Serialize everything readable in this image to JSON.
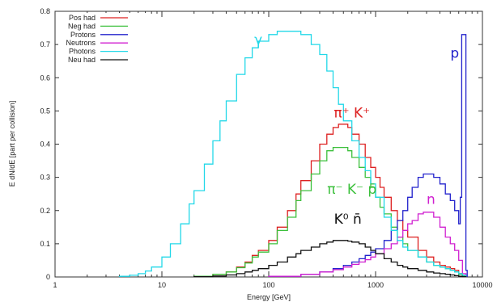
{
  "chart_data": {
    "type": "line",
    "xlabel": "Energy [GeV]",
    "ylabel": "E dN/dE [part per collision]",
    "xscale": "log",
    "xlim": [
      1,
      10000
    ],
    "ylim": [
      0,
      0.8
    ],
    "grid": false,
    "legend_position": "top-left",
    "x_ticks": [
      {
        "value": 1,
        "label": "1"
      },
      {
        "value": 10,
        "label": "10"
      },
      {
        "value": 100,
        "label": "100"
      },
      {
        "value": 1000,
        "label": "1000"
      },
      {
        "value": 10000,
        "label": "10000"
      }
    ],
    "y_ticks": [
      {
        "value": 0,
        "label": "0"
      },
      {
        "value": 0.1,
        "label": "0.1"
      },
      {
        "value": 0.2,
        "label": "0.2"
      },
      {
        "value": 0.3,
        "label": "0.3"
      },
      {
        "value": 0.4,
        "label": "0.4"
      },
      {
        "value": 0.5,
        "label": "0.5"
      },
      {
        "value": 0.6,
        "label": "0.6"
      },
      {
        "value": 0.7,
        "label": "0.7"
      },
      {
        "value": 0.8,
        "label": "0.8"
      }
    ],
    "series": [
      {
        "name": "Pos had",
        "color": "#dd2020",
        "x": [
          20,
          30,
          40,
          50,
          60,
          70,
          80,
          100,
          120,
          150,
          180,
          200,
          250,
          300,
          350,
          400,
          450,
          500,
          550,
          600,
          700,
          800,
          900,
          1000,
          1100,
          1200,
          1400,
          1600,
          1800,
          2000,
          2500,
          3000,
          3500,
          4000,
          4500,
          5000,
          5500,
          6000,
          6500,
          7000
        ],
        "y": [
          0.002,
          0.008,
          0.015,
          0.03,
          0.045,
          0.065,
          0.08,
          0.11,
          0.15,
          0.2,
          0.25,
          0.29,
          0.35,
          0.4,
          0.43,
          0.45,
          0.46,
          0.46,
          0.45,
          0.43,
          0.4,
          0.36,
          0.33,
          0.3,
          0.27,
          0.24,
          0.2,
          0.17,
          0.14,
          0.12,
          0.08,
          0.06,
          0.045,
          0.035,
          0.03,
          0.025,
          0.02,
          0.01,
          0.005,
          0
        ]
      },
      {
        "name": "Neg had",
        "color": "#3cc03c",
        "x": [
          20,
          30,
          40,
          50,
          60,
          70,
          80,
          100,
          120,
          150,
          180,
          200,
          250,
          300,
          350,
          400,
          450,
          500,
          550,
          600,
          700,
          800,
          900,
          1000,
          1100,
          1200,
          1400,
          1600,
          1800,
          2000,
          2500,
          3000,
          3500,
          4000,
          4500,
          5000,
          5500,
          6000,
          6500,
          7000
        ],
        "y": [
          0.002,
          0.008,
          0.015,
          0.028,
          0.042,
          0.06,
          0.075,
          0.1,
          0.14,
          0.18,
          0.23,
          0.26,
          0.31,
          0.35,
          0.38,
          0.39,
          0.39,
          0.39,
          0.38,
          0.36,
          0.33,
          0.3,
          0.27,
          0.24,
          0.21,
          0.19,
          0.15,
          0.12,
          0.1,
          0.08,
          0.06,
          0.045,
          0.035,
          0.03,
          0.025,
          0.02,
          0.015,
          0.008,
          0.004,
          0
        ]
      },
      {
        "name": "Protons",
        "color": "#2222cc",
        "x": [
          100,
          200,
          300,
          400,
          500,
          600,
          700,
          800,
          900,
          1000,
          1200,
          1400,
          1600,
          1800,
          2000,
          2200,
          2500,
          2800,
          3000,
          3500,
          4000,
          4500,
          5000,
          5500,
          6000,
          6200,
          6400,
          6500,
          6800,
          7000,
          7200
        ],
        "y": [
          0.002,
          0.008,
          0.015,
          0.025,
          0.035,
          0.045,
          0.055,
          0.065,
          0.075,
          0.085,
          0.11,
          0.14,
          0.17,
          0.2,
          0.24,
          0.27,
          0.3,
          0.31,
          0.31,
          0.3,
          0.28,
          0.25,
          0.23,
          0.2,
          0.16,
          0.24,
          0.73,
          0.73,
          0.73,
          0.02,
          0
        ]
      },
      {
        "name": "Neutrons",
        "color": "#d020d0",
        "x": [
          100,
          200,
          300,
          400,
          500,
          600,
          700,
          800,
          900,
          1000,
          1200,
          1400,
          1600,
          1800,
          2000,
          2200,
          2500,
          2800,
          3000,
          3500,
          4000,
          4500,
          5000,
          5500,
          6000,
          6500,
          7000
        ],
        "y": [
          0.002,
          0.008,
          0.015,
          0.022,
          0.03,
          0.038,
          0.045,
          0.052,
          0.06,
          0.07,
          0.085,
          0.1,
          0.12,
          0.14,
          0.16,
          0.17,
          0.19,
          0.195,
          0.195,
          0.18,
          0.15,
          0.12,
          0.1,
          0.08,
          0.05,
          0.01,
          0
        ]
      },
      {
        "name": "Photons",
        "color": "#22d8e8",
        "x": [
          4,
          5,
          6,
          7,
          8,
          10,
          12,
          15,
          18,
          20,
          25,
          30,
          35,
          40,
          50,
          60,
          70,
          80,
          100,
          120,
          150,
          180,
          200,
          250,
          300,
          350,
          400,
          450,
          500,
          600,
          700,
          800,
          900,
          1000,
          1200,
          1400,
          1600,
          1800,
          2000,
          2500,
          3000,
          3500,
          4000,
          4500,
          5000,
          5500,
          6000,
          6500,
          7000
        ],
        "y": [
          0.002,
          0.005,
          0.01,
          0.018,
          0.03,
          0.06,
          0.1,
          0.16,
          0.22,
          0.26,
          0.34,
          0.41,
          0.47,
          0.53,
          0.61,
          0.66,
          0.69,
          0.71,
          0.73,
          0.74,
          0.74,
          0.74,
          0.73,
          0.7,
          0.67,
          0.62,
          0.57,
          0.52,
          0.47,
          0.41,
          0.36,
          0.32,
          0.28,
          0.24,
          0.18,
          0.14,
          0.11,
          0.09,
          0.08,
          0.06,
          0.045,
          0.035,
          0.03,
          0.025,
          0.02,
          0.015,
          0.01,
          0.005,
          0
        ]
      },
      {
        "name": "Neu had",
        "color": "#111111",
        "x": [
          20,
          30,
          40,
          50,
          60,
          70,
          80,
          100,
          120,
          150,
          180,
          200,
          250,
          300,
          350,
          400,
          450,
          500,
          550,
          600,
          700,
          800,
          900,
          1000,
          1200,
          1400,
          1600,
          1800,
          2000,
          2500,
          3000,
          3500,
          4000,
          4500,
          5000,
          5500,
          6000,
          6500,
          7000
        ],
        "y": [
          0.001,
          0.003,
          0.006,
          0.01,
          0.015,
          0.02,
          0.025,
          0.035,
          0.045,
          0.06,
          0.07,
          0.08,
          0.09,
          0.1,
          0.105,
          0.11,
          0.11,
          0.11,
          0.108,
          0.105,
          0.1,
          0.09,
          0.08,
          0.07,
          0.055,
          0.045,
          0.035,
          0.03,
          0.025,
          0.02,
          0.015,
          0.012,
          0.01,
          0.008,
          0.006,
          0.004,
          0.002,
          0.001,
          0
        ]
      }
    ],
    "annotations": [
      {
        "text": "γ",
        "color": "#22d8e8",
        "x": 80,
        "y": 0.7
      },
      {
        "text": "p",
        "color": "#2222cc",
        "x": 5500,
        "y": 0.66
      },
      {
        "text": "π⁺ K⁺",
        "color": "#dd2020",
        "x": 600,
        "y": 0.48
      },
      {
        "text": "π⁻ K⁻ p̄",
        "color": "#3cc03c",
        "x": 600,
        "y": 0.25
      },
      {
        "text": "n",
        "color": "#d020d0",
        "x": 3300,
        "y": 0.22
      },
      {
        "text": "K⁰ n̄",
        "color": "#111111",
        "x": 550,
        "y": 0.16
      }
    ]
  }
}
